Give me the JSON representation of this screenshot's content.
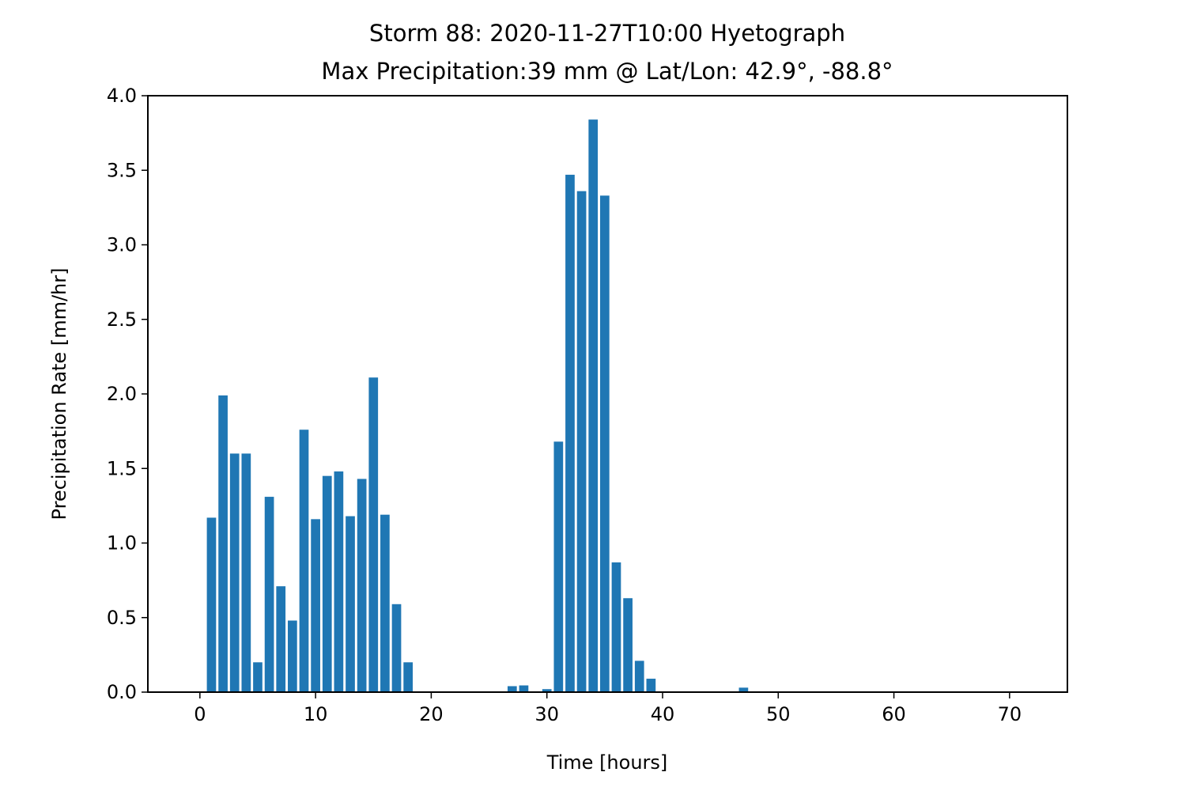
{
  "chart_data": {
    "type": "bar",
    "title_line1": "Storm 88: 2020-11-27T10:00 Hyetograph",
    "title_line2": "Max Precipitation:39 mm @ Lat/Lon:  42.9°, -88.8°",
    "xlabel": "Time [hours]",
    "ylabel": "Precipitation Rate [mm/hr]",
    "xlim": [
      -4.5,
      75
    ],
    "ylim": [
      0,
      4.0
    ],
    "xticks": [
      0,
      10,
      20,
      30,
      40,
      50,
      60,
      70
    ],
    "yticks": [
      0.0,
      0.5,
      1.0,
      1.5,
      2.0,
      2.5,
      3.0,
      3.5,
      4.0
    ],
    "ytick_labels": [
      "0.0",
      "0.5",
      "1.0",
      "1.5",
      "2.0",
      "2.5",
      "3.0",
      "3.5",
      "4.0"
    ],
    "bar_width": 0.8,
    "bar_color": "#1f77b4",
    "grid": false,
    "x": [
      0,
      1,
      2,
      3,
      4,
      5,
      6,
      7,
      8,
      9,
      10,
      11,
      12,
      13,
      14,
      15,
      16,
      17,
      18,
      19,
      20,
      21,
      22,
      23,
      24,
      25,
      26,
      27,
      28,
      29,
      30,
      31,
      32,
      33,
      34,
      35,
      36,
      37,
      38,
      39,
      40,
      41,
      42,
      43,
      44,
      45,
      46,
      47,
      48,
      49,
      50,
      51,
      52,
      53,
      54,
      55,
      56,
      57,
      58,
      59,
      60,
      61,
      62,
      63,
      64,
      65,
      66,
      67,
      68,
      69,
      70,
      71
    ],
    "values": [
      0,
      1.17,
      1.99,
      1.6,
      1.6,
      0.2,
      1.31,
      0.71,
      0.48,
      1.76,
      1.16,
      1.45,
      1.48,
      1.18,
      1.43,
      2.11,
      1.19,
      0.59,
      0.2,
      0,
      0,
      0,
      0,
      0,
      0,
      0,
      0,
      0.04,
      0.045,
      0,
      0.02,
      1.68,
      3.47,
      3.36,
      3.84,
      3.33,
      0.87,
      0.63,
      0.21,
      0.09,
      0,
      0,
      0,
      0,
      0,
      0,
      0,
      0.03,
      0,
      0,
      0,
      0,
      0,
      0,
      0,
      0,
      0,
      0,
      0,
      0,
      0,
      0,
      0,
      0,
      0,
      0,
      0,
      0,
      0,
      0,
      0,
      0
    ]
  }
}
